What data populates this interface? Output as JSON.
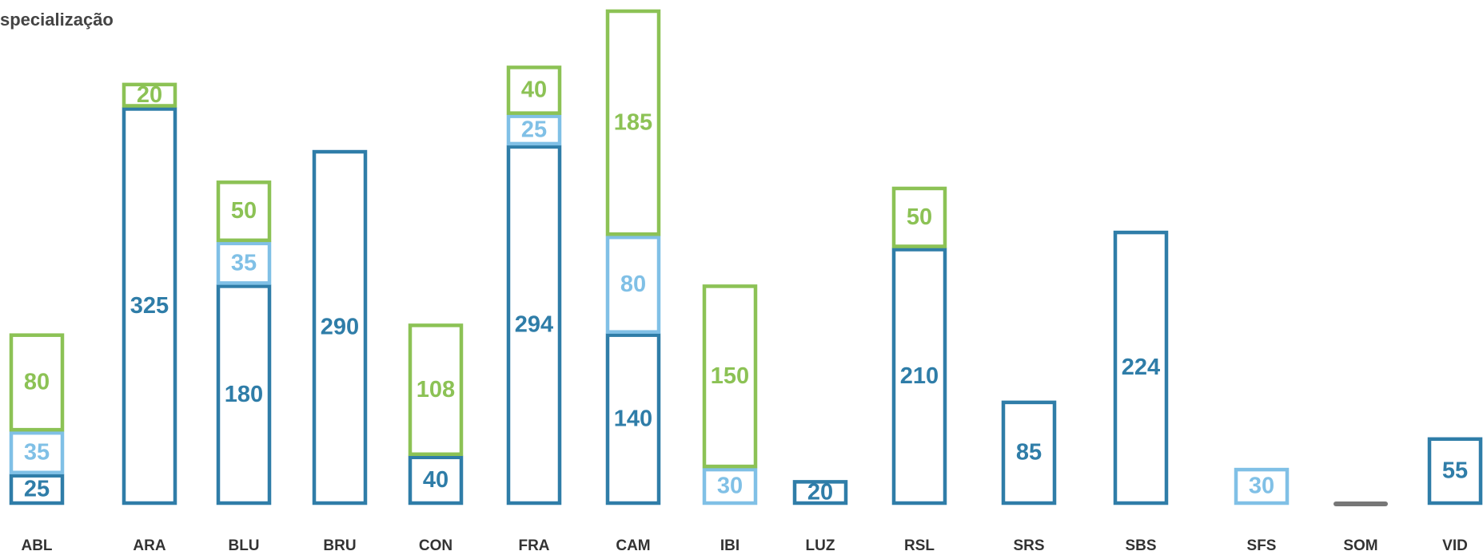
{
  "chart_data": {
    "type": "bar",
    "stacked": true,
    "title": "specialização",
    "categories": [
      "ABL",
      "ARA",
      "BLU",
      "BRU",
      "CON",
      "FRA",
      "CAM",
      "IBI",
      "LUZ",
      "RSL",
      "SRS",
      "SBS",
      "SFS",
      "SOM",
      "VID"
    ],
    "series": [
      {
        "color": "#2f7da8",
        "values": [
          25,
          325,
          180,
          290,
          40,
          294,
          140,
          null,
          20,
          210,
          85,
          224,
          null,
          0,
          55
        ]
      },
      {
        "color": "#80c0e6",
        "values": [
          35,
          null,
          35,
          null,
          null,
          25,
          80,
          30,
          null,
          null,
          null,
          null,
          30,
          null,
          null
        ]
      },
      {
        "color": "#8cc255",
        "values": [
          80,
          20,
          50,
          null,
          108,
          40,
          185,
          150,
          null,
          50,
          null,
          null,
          null,
          null,
          null
        ]
      }
    ]
  }
}
